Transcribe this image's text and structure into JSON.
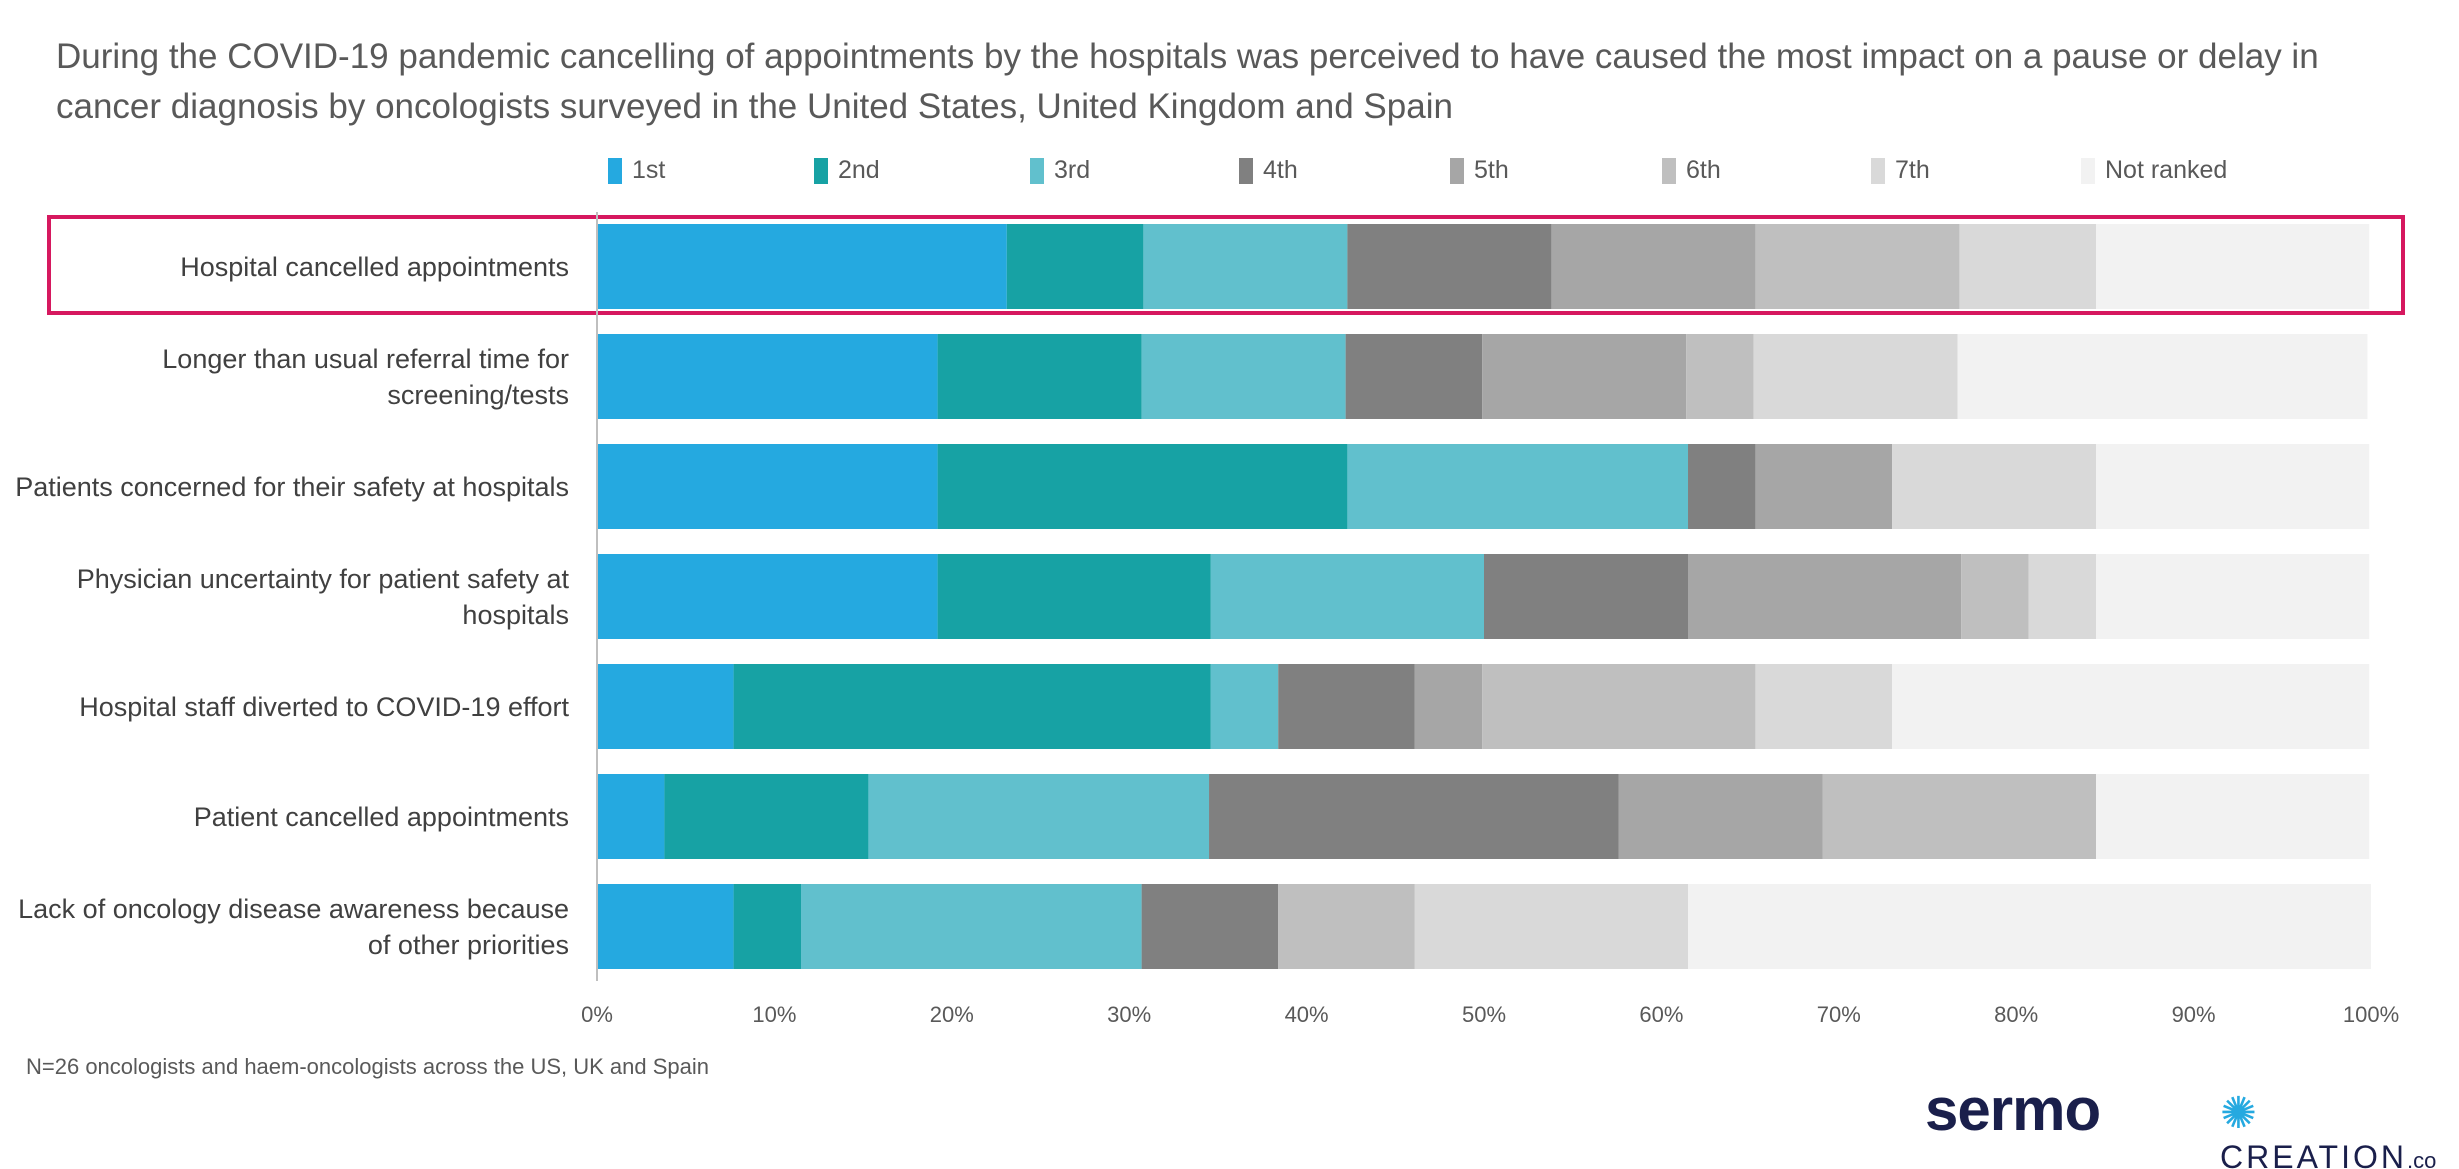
{
  "chart_data": {
    "type": "bar",
    "orientation": "horizontal",
    "stacked": "100%",
    "title": "During the COVID-19 pandemic cancelling of appointments by the hospitals was perceived to have caused the most impact on a pause or delay in cancer diagnosis by oncologists surveyed in the United States, United Kingdom and Spain",
    "categories": [
      "Hospital cancelled appointments",
      "Longer than usual referral time for screening/tests",
      "Patients concerned for their safety at hospitals",
      "Physician uncertainty for patient safety at hospitals",
      "Hospital staff diverted to COVID-19 effort",
      "Patient cancelled appointments",
      "Lack of oncology disease awareness because of other priorities"
    ],
    "series": [
      {
        "name": "1st",
        "color": "#25a9e0",
        "values": [
          23.1,
          19.2,
          19.2,
          19.2,
          7.7,
          3.8,
          7.7
        ]
      },
      {
        "name": "2nd",
        "color": "#17a2a4",
        "values": [
          7.7,
          11.5,
          23.1,
          15.4,
          26.9,
          11.5,
          3.8
        ]
      },
      {
        "name": "3rd",
        "color": "#61c0cd",
        "values": [
          11.5,
          11.5,
          19.2,
          15.4,
          3.8,
          19.2,
          19.2
        ]
      },
      {
        "name": "4th",
        "color": "#808080",
        "values": [
          11.5,
          7.7,
          3.8,
          11.5,
          7.7,
          23.1,
          7.7
        ]
      },
      {
        "name": "5th",
        "color": "#a6a6a6",
        "values": [
          11.5,
          11.5,
          7.7,
          15.4,
          3.8,
          11.5,
          0
        ]
      },
      {
        "name": "6th",
        "color": "#bfbfbf",
        "values": [
          11.5,
          3.8,
          0,
          3.8,
          15.4,
          15.4,
          7.7
        ]
      },
      {
        "name": "7th",
        "color": "#d9d9d9",
        "values": [
          7.7,
          11.5,
          11.5,
          3.8,
          7.7,
          0,
          15.4
        ]
      },
      {
        "name": "Not ranked",
        "color": "#f2f2f2",
        "values": [
          15.4,
          23.1,
          15.4,
          15.4,
          26.9,
          15.4,
          38.5
        ]
      }
    ],
    "xlim": [
      0,
      100
    ],
    "xticks": [
      "0%",
      "10%",
      "20%",
      "30%",
      "40%",
      "50%",
      "60%",
      "70%",
      "80%",
      "90%",
      "100%"
    ],
    "legend_position": "top",
    "grid": false,
    "highlighted_category": "Hospital cancelled appointments",
    "highlight_color": "#d6185f"
  },
  "footnote": "N=26 oncologists and haem-oncologists across the US, UK and Spain",
  "logos": {
    "sermo": "sermo",
    "creation": "CREATION",
    "creation_suffix": ".co"
  }
}
